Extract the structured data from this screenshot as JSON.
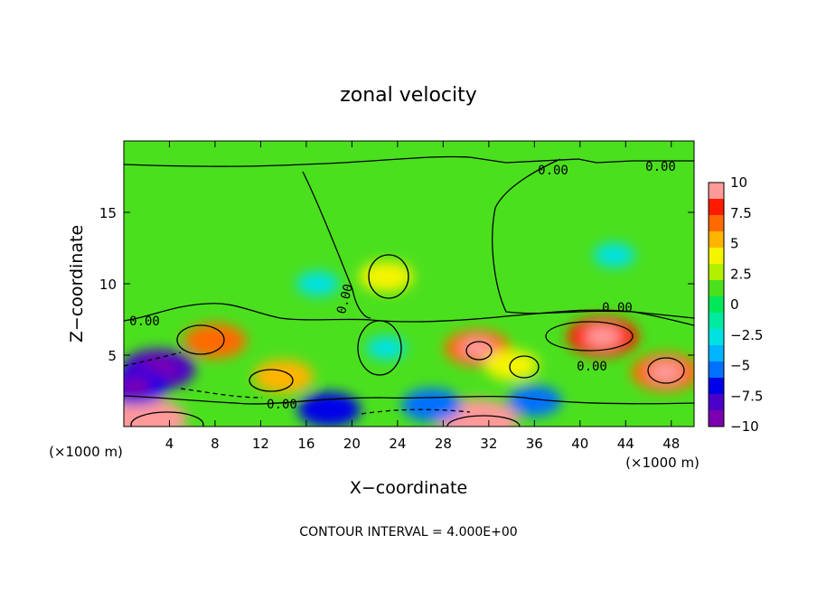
{
  "chart_data": {
    "type": "heatmap",
    "title": "zonal velocity",
    "xlabel": "X−coordinate",
    "ylabel": "Z−coordinate",
    "x_unit_left": "(×1000 m)",
    "x_unit_right": "(×1000 m)",
    "xlim": [
      0,
      50
    ],
    "ylim": [
      0,
      20
    ],
    "x_ticks": [
      4,
      8,
      12,
      16,
      20,
      24,
      28,
      32,
      36,
      40,
      44,
      48
    ],
    "y_ticks": [
      5,
      10,
      15
    ],
    "colorbar": {
      "ticks": [
        "10",
        "7.5",
        "5",
        "2.5",
        "0",
        "−2.5",
        "−5",
        "−7.5",
        "−10"
      ],
      "range": [
        -10,
        10
      ],
      "colors": [
        "#ff9a9a",
        "#ff1a00",
        "#ff6a00",
        "#ffb400",
        "#f4f400",
        "#b2f000",
        "#4be01e",
        "#00e85a",
        "#00eaa0",
        "#00e2e2",
        "#00b4ff",
        "#0070ff",
        "#0000e8",
        "#4b00c8",
        "#7a00b0"
      ]
    },
    "contour_labels": [
      "0.00",
      "0.00",
      "0.00",
      "0.00",
      "0.00",
      "0.00",
      "0.00"
    ],
    "blobs": [
      {
        "x": 23,
        "z": 10.5,
        "u": 5
      },
      {
        "x": 8,
        "z": 6.0,
        "u": 6.5
      },
      {
        "x": 14,
        "z": 3.5,
        "u": 6
      },
      {
        "x": 31,
        "z": 5.5,
        "u": 7
      },
      {
        "x": 34,
        "z": 4.3,
        "u": 5
      },
      {
        "x": 42,
        "z": 6.3,
        "u": 8
      },
      {
        "x": 47.5,
        "z": 3.8,
        "u": 7.5
      },
      {
        "x": 2,
        "z": 0.5,
        "u": 9.5
      },
      {
        "x": 31,
        "z": 0.4,
        "u": 9.5
      },
      {
        "x": 3,
        "z": 4.0,
        "u": -8.5
      },
      {
        "x": 1,
        "z": 2.8,
        "u": -7
      },
      {
        "x": 18,
        "z": 1.2,
        "u": -6.5
      },
      {
        "x": 27,
        "z": 1.5,
        "u": -6
      },
      {
        "x": 36,
        "z": 1.8,
        "u": -5
      },
      {
        "x": 17,
        "z": 10.0,
        "u": -3
      },
      {
        "x": 43,
        "z": 12.0,
        "u": -2.8
      },
      {
        "x": 23,
        "z": 5.5,
        "u": -2.5
      }
    ],
    "footer": "CONTOUR INTERVAL = 4.000E+00"
  }
}
